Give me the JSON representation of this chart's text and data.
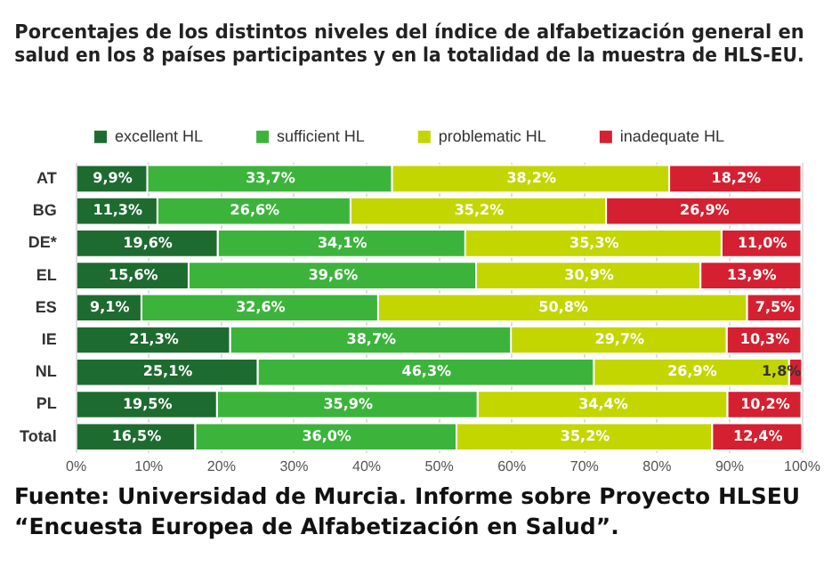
{
  "chart_data": {
    "type": "bar",
    "orientation": "horizontal",
    "stacked": true,
    "title": "Porcentajes de los distintos niveles del índice de alfabetización general en salud en los 8 países participantes y en la totalidad de la muestra de HLS-EU.",
    "categories": [
      "AT",
      "BG",
      "DE*",
      "EL",
      "ES",
      "IE",
      "NL",
      "PL",
      "Total"
    ],
    "series": [
      {
        "name": "excellent HL",
        "color": "#1e6b30",
        "values": [
          9.9,
          11.3,
          19.6,
          15.6,
          9.1,
          21.3,
          25.1,
          19.5,
          16.5
        ],
        "value_labels": [
          "9,9%",
          "11,3%",
          "19,6%",
          "15,6%",
          "9,1%",
          "21,3%",
          "25,1%",
          "19,5%",
          "16,5%"
        ]
      },
      {
        "name": "sufficient HL",
        "color": "#3cb43c",
        "values": [
          33.7,
          26.6,
          34.1,
          39.6,
          32.6,
          38.7,
          46.3,
          35.9,
          36.0
        ],
        "value_labels": [
          "33,7%",
          "26,6%",
          "34,1%",
          "39,6%",
          "32,6%",
          "38,7%",
          "46,3%",
          "35,9%",
          "36,0%"
        ]
      },
      {
        "name": "problematic HL",
        "color": "#c4d600",
        "values": [
          38.2,
          35.2,
          35.3,
          30.9,
          50.8,
          29.7,
          26.9,
          34.4,
          35.2
        ],
        "value_labels": [
          "38,2%",
          "35,2%",
          "35,3%",
          "30,9%",
          "50,8%",
          "29,7%",
          "26,9%",
          "34,4%",
          "35,2%"
        ]
      },
      {
        "name": "inadequate HL",
        "color": "#d42030",
        "values": [
          18.2,
          26.9,
          11.0,
          13.9,
          7.5,
          10.3,
          1.8,
          10.2,
          12.4
        ],
        "value_labels": [
          "18,2%",
          "26,9%",
          "11,0%",
          "13,9%",
          "7,5%",
          "10,3%",
          "1,8%",
          "10,2%",
          "12,4%"
        ]
      }
    ],
    "xlim": [
      0,
      100
    ],
    "xticks": [
      {
        "value": 0,
        "label": "0%"
      },
      {
        "value": 10,
        "label": "10%"
      },
      {
        "value": 20,
        "label": "20%"
      },
      {
        "value": 30,
        "label": "30%"
      },
      {
        "value": 40,
        "label": "40%"
      },
      {
        "value": 50,
        "label": "50%"
      },
      {
        "value": 60,
        "label": "60%"
      },
      {
        "value": 70,
        "label": "70%"
      },
      {
        "value": 80,
        "label": "80%"
      },
      {
        "value": 90,
        "label": "90%"
      },
      {
        "value": 100,
        "label": "100%"
      }
    ],
    "grid": "x",
    "legend": "top",
    "annotations": [
      "Fuente: Universidad de Murcia. Informe sobre Proyecto HLSEU “Encuesta Europea de Alfabetización en Salud”."
    ]
  }
}
